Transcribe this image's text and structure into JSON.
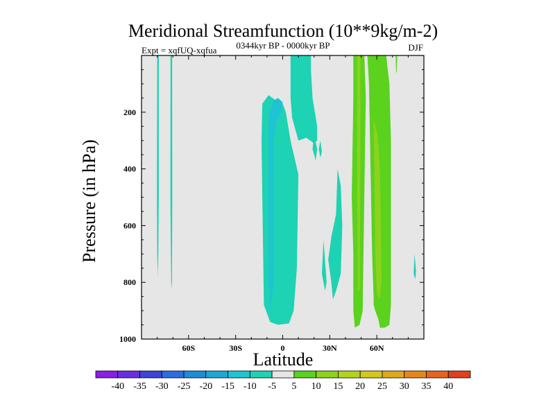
{
  "chart_data": {
    "type": "contour",
    "title": "Meridional Streamfunction (10**9kg/m-2)",
    "subtitle_left": "Expt = xqfUQ-xqfua",
    "subtitle_center": "0344kyr BP - 0000kyr BP",
    "subtitle_right": "DJF",
    "xlabel": "Latitude",
    "ylabel": "Pressure (in hPa)",
    "xlim": [
      -90,
      90
    ],
    "ylim": [
      1000,
      0
    ],
    "x_ticks": [
      {
        "value": -60,
        "label": "60S"
      },
      {
        "value": -30,
        "label": "30S"
      },
      {
        "value": 0,
        "label": "0"
      },
      {
        "value": 30,
        "label": "30N"
      },
      {
        "value": 60,
        "label": "60N"
      }
    ],
    "y_ticks": [
      {
        "value": 200,
        "label": "200"
      },
      {
        "value": 400,
        "label": "400"
      },
      {
        "value": 600,
        "label": "600"
      },
      {
        "value": 800,
        "label": "800"
      },
      {
        "value": 1000,
        "label": "1000"
      }
    ],
    "background_color": "#e6e6e6",
    "colorbar": {
      "levels": [
        -40,
        -35,
        -30,
        -25,
        -20,
        -15,
        -10,
        -5,
        5,
        10,
        15,
        20,
        25,
        30,
        35,
        40
      ],
      "colors": [
        "#8b1ee6",
        "#6a2ee0",
        "#3c46d6",
        "#2a6ee0",
        "#1e8cd8",
        "#1ea8d8",
        "#1ec4d2",
        "#1ed2b4",
        "#e6e6e6",
        "#5ad21e",
        "#8cd21e",
        "#b4d21e",
        "#d2c81e",
        "#e0a81e",
        "#e6871e",
        "#e6651e",
        "#e0401e"
      ]
    },
    "regions": [
      {
        "name": "sh-high-lat-streak-1",
        "level": "-10 to -5",
        "color": "#1ed2b4",
        "points": [
          [
            -80,
            0
          ],
          [
            -79,
            0
          ],
          [
            -79,
            500
          ],
          [
            -79.3,
            700
          ],
          [
            -79.6,
            780
          ],
          [
            -80,
            700
          ],
          [
            -80.2,
            500
          ]
        ]
      },
      {
        "name": "sh-high-lat-streak-2",
        "level": "-10 to -5",
        "color": "#1ed2b4",
        "points": [
          [
            -71.5,
            0
          ],
          [
            -70.5,
            0
          ],
          [
            -70.4,
            500
          ],
          [
            -70.6,
            800
          ],
          [
            -71,
            825
          ],
          [
            -71.3,
            700
          ],
          [
            -71.6,
            500
          ]
        ]
      },
      {
        "name": "tropical-negative-cell",
        "level": "-10 to -5",
        "color": "#1ed2b4",
        "points": [
          [
            -13,
            170
          ],
          [
            -9,
            140
          ],
          [
            -4,
            160
          ],
          [
            0,
            170
          ],
          [
            2,
            200
          ],
          [
            5,
            300
          ],
          [
            10,
            420
          ],
          [
            9,
            750
          ],
          [
            7,
            900
          ],
          [
            4,
            945
          ],
          [
            -3,
            950
          ],
          [
            -8,
            940
          ],
          [
            -12,
            880
          ],
          [
            -13,
            500
          ],
          [
            -13.5,
            300
          ]
        ]
      },
      {
        "name": "tropical-negative-cell-core",
        "level": "-15 to -10",
        "color": "#1ec4d2",
        "points": [
          [
            -6,
            160
          ],
          [
            -3,
            150
          ],
          [
            0,
            165
          ],
          [
            -1,
            200
          ],
          [
            -4,
            230
          ],
          [
            -6,
            300
          ],
          [
            -6,
            820
          ],
          [
            -8,
            900
          ],
          [
            -9,
            800
          ],
          [
            -9,
            300
          ],
          [
            -9,
            220
          ]
        ]
      },
      {
        "name": "upper-eq-negative-lobe",
        "level": "-10 to -5",
        "color": "#1ed2b4",
        "points": [
          [
            5,
            0
          ],
          [
            18,
            0
          ],
          [
            18,
            50
          ],
          [
            19,
            150
          ],
          [
            22,
            250
          ],
          [
            22,
            300
          ],
          [
            20,
            310
          ],
          [
            15,
            290
          ],
          [
            10,
            300
          ],
          [
            6,
            220
          ],
          [
            5,
            150
          ]
        ]
      },
      {
        "name": "small-cell-18n-1",
        "level": "-10 to -5",
        "color": "#1ed2b4",
        "points": [
          [
            20,
            280
          ],
          [
            22,
            330
          ],
          [
            21,
            370
          ],
          [
            19,
            330
          ]
        ]
      },
      {
        "name": "small-cell-18n-2",
        "level": "-10 to -5",
        "color": "#1ed2b4",
        "points": [
          [
            24,
            300
          ],
          [
            25,
            340
          ],
          [
            24,
            360
          ],
          [
            23,
            330
          ]
        ]
      },
      {
        "name": "ne-low-lat-negative-1",
        "level": "-10 to -5",
        "color": "#1ed2b4",
        "points": [
          [
            26,
            650
          ],
          [
            28,
            800
          ],
          [
            27,
            830
          ],
          [
            25,
            770
          ]
        ]
      },
      {
        "name": "ne-low-lat-negative-2",
        "level": "-10 to -5",
        "color": "#1ed2b4",
        "points": [
          [
            35,
            400
          ],
          [
            37,
            460
          ],
          [
            38,
            600
          ],
          [
            37,
            770
          ],
          [
            34,
            830
          ],
          [
            32,
            860
          ],
          [
            31,
            800
          ],
          [
            29,
            720
          ],
          [
            31,
            640
          ],
          [
            34,
            560
          ]
        ]
      },
      {
        "name": "nh-positive-cell-1",
        "level": "5 to 10",
        "color": "#5ad21e",
        "points": [
          [
            45,
            0
          ],
          [
            52,
            0
          ],
          [
            53,
            150
          ],
          [
            52,
            500
          ],
          [
            51,
            900
          ],
          [
            49,
            950
          ],
          [
            46,
            960
          ],
          [
            45,
            900
          ],
          [
            45,
            700
          ],
          [
            44,
            500
          ],
          [
            45,
            150
          ]
        ]
      },
      {
        "name": "nh-positive-cell-1-core",
        "level": "10 to 15",
        "color": "#8cd21e",
        "points": [
          [
            47.5,
            0
          ],
          [
            49.5,
            0
          ],
          [
            49.5,
            400
          ],
          [
            49,
            830
          ],
          [
            48,
            830
          ],
          [
            47.5,
            500
          ]
        ]
      },
      {
        "name": "nh-positive-cell-2",
        "level": "5 to 10",
        "color": "#5ad21e",
        "points": [
          [
            54,
            0
          ],
          [
            66,
            0
          ],
          [
            68,
            100
          ],
          [
            69,
            300
          ],
          [
            69,
            880
          ],
          [
            68,
            950
          ],
          [
            65,
            960
          ],
          [
            62,
            960
          ],
          [
            61,
            930
          ],
          [
            59,
            900
          ],
          [
            58,
            880
          ],
          [
            58,
            860
          ],
          [
            57,
            700
          ],
          [
            56,
            400
          ],
          [
            55,
            100
          ]
        ]
      },
      {
        "name": "nh-positive-cell-2-core",
        "level": "10 to 15",
        "color": "#8cd21e",
        "points": [
          [
            58,
            230
          ],
          [
            60.5,
            280
          ],
          [
            62,
            400
          ],
          [
            62.5,
            550
          ],
          [
            63,
            790
          ],
          [
            62,
            860
          ],
          [
            60,
            840
          ],
          [
            59,
            700
          ],
          [
            58.5,
            450
          ]
        ]
      },
      {
        "name": "nh-small-positive",
        "level": "5 to 10",
        "color": "#5ad21e",
        "points": [
          [
            72,
            0
          ],
          [
            73,
            0
          ],
          [
            72.7,
            60
          ],
          [
            72.3,
            60
          ]
        ]
      },
      {
        "name": "nh-far-negative",
        "level": "-10 to -5",
        "color": "#1ed2b4",
        "points": [
          [
            84,
            700
          ],
          [
            85,
            760
          ],
          [
            84.5,
            790
          ],
          [
            83.5,
            770
          ]
        ]
      }
    ]
  }
}
